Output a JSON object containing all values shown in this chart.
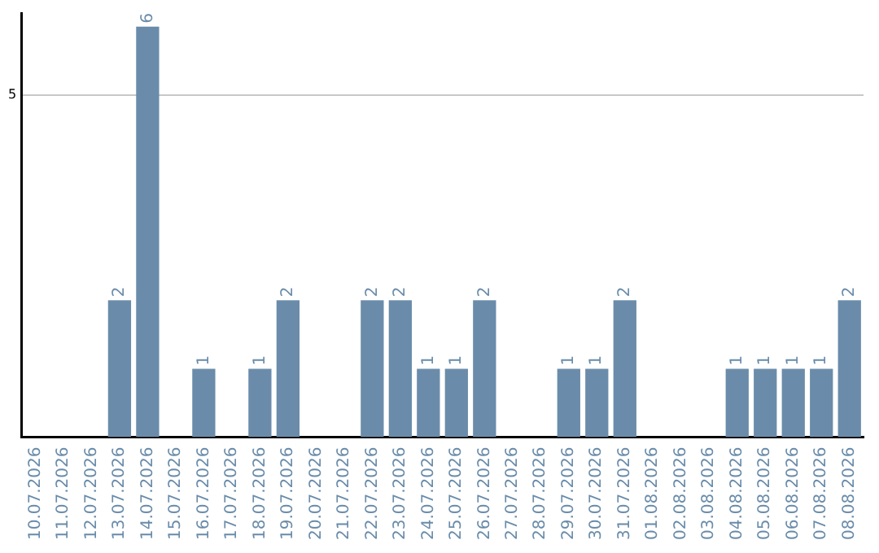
{
  "chart_data": {
    "type": "bar",
    "categories": [
      "10.07.2026",
      "11.07.2026",
      "12.07.2026",
      "13.07.2026",
      "14.07.2026",
      "15.07.2026",
      "16.07.2026",
      "17.07.2026",
      "18.07.2026",
      "19.07.2026",
      "20.07.2026",
      "21.07.2026",
      "22.07.2026",
      "23.07.2026",
      "24.07.2026",
      "25.07.2026",
      "26.07.2026",
      "27.07.2026",
      "28.07.2026",
      "29.07.2026",
      "30.07.2026",
      "31.07.2026",
      "01.08.2026",
      "02.08.2026",
      "03.08.2026",
      "04.08.2026",
      "05.08.2026",
      "06.08.2026",
      "07.08.2026",
      "08.08.2026"
    ],
    "values": [
      0,
      0,
      0,
      2,
      6,
      0,
      1,
      0,
      1,
      2,
      0,
      0,
      2,
      2,
      1,
      1,
      2,
      0,
      0,
      1,
      1,
      2,
      0,
      0,
      0,
      1,
      1,
      1,
      1,
      2
    ],
    "value_labels": [
      null,
      null,
      null,
      "2",
      "6",
      null,
      "1",
      null,
      "1",
      "2",
      null,
      null,
      "2",
      "2",
      "1",
      "1",
      "2",
      null,
      null,
      "1",
      "1",
      "2",
      null,
      null,
      null,
      "1",
      "1",
      "1",
      "1",
      "2"
    ],
    "color": "#6a8caa",
    "ylim": [
      0,
      6.2
    ],
    "yticks": [
      5
    ],
    "grid": "y",
    "legend": false
  }
}
